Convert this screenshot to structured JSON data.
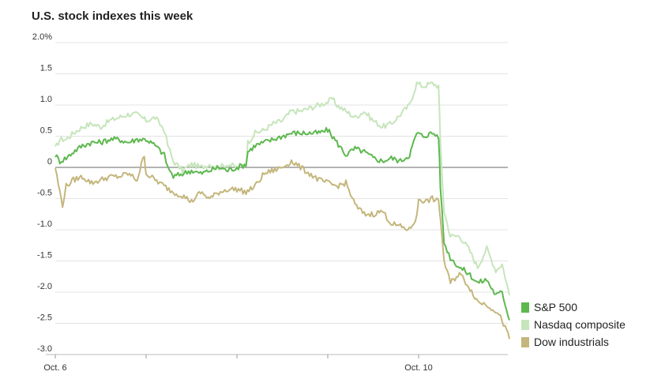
{
  "chart_data": {
    "type": "line",
    "title": "U.S. stock indexes this week",
    "xlabel": "",
    "ylabel": "",
    "ylim": [
      -3.0,
      2.0
    ],
    "y_ticks": [
      2.0,
      1.5,
      1.0,
      0.5,
      0,
      -0.5,
      -1.0,
      -1.5,
      -2.0,
      -2.5,
      -3.0
    ],
    "y_tick_labels": [
      "2.0%",
      "1.5",
      "1.0",
      "0.5",
      "0",
      "-0.5",
      "-1.0",
      "-1.5",
      "-2.0",
      "-2.5",
      "-3.0"
    ],
    "x_range": [
      0,
      5
    ],
    "x_ticks": [
      0,
      1,
      2,
      3,
      4
    ],
    "x_tick_labels": [
      "Oct. 6",
      "",
      "",
      "",
      "Oct. 10"
    ],
    "grid": true,
    "legend_position": "bottom-right",
    "series": [
      {
        "name": "Nasdaq composite",
        "color": "#c6e5bb",
        "points": [
          [
            0.0,
            0.3
          ],
          [
            0.05,
            0.45
          ],
          [
            0.12,
            0.45
          ],
          [
            0.2,
            0.55
          ],
          [
            0.3,
            0.65
          ],
          [
            0.4,
            0.7
          ],
          [
            0.5,
            0.65
          ],
          [
            0.6,
            0.75
          ],
          [
            0.7,
            0.8
          ],
          [
            0.8,
            0.85
          ],
          [
            0.9,
            0.85
          ],
          [
            1.0,
            0.75
          ],
          [
            1.1,
            0.8
          ],
          [
            1.2,
            0.6
          ],
          [
            1.24,
            0.35
          ],
          [
            1.3,
            0.1
          ],
          [
            1.4,
            -0.05
          ],
          [
            1.5,
            0.05
          ],
          [
            1.6,
            0.0
          ],
          [
            1.7,
            0.05
          ],
          [
            1.8,
            0.0
          ],
          [
            1.9,
            0.05
          ],
          [
            2.0,
            0.0
          ],
          [
            2.1,
            0.05
          ],
          [
            2.12,
            0.4
          ],
          [
            2.2,
            0.55
          ],
          [
            2.3,
            0.6
          ],
          [
            2.4,
            0.7
          ],
          [
            2.5,
            0.75
          ],
          [
            2.6,
            0.9
          ],
          [
            2.7,
            0.9
          ],
          [
            2.8,
            0.95
          ],
          [
            2.9,
            1.0
          ],
          [
            3.0,
            1.05
          ],
          [
            3.05,
            1.1
          ],
          [
            3.1,
            1.0
          ],
          [
            3.2,
            0.9
          ],
          [
            3.3,
            0.8
          ],
          [
            3.4,
            0.9
          ],
          [
            3.5,
            0.75
          ],
          [
            3.6,
            0.65
          ],
          [
            3.7,
            0.7
          ],
          [
            3.8,
            0.85
          ],
          [
            3.9,
            1.0
          ],
          [
            3.98,
            1.35
          ],
          [
            4.05,
            1.3
          ],
          [
            4.15,
            1.35
          ],
          [
            4.22,
            1.3
          ],
          [
            4.24,
            0.4
          ],
          [
            4.28,
            -0.7
          ],
          [
            4.35,
            -1.1
          ],
          [
            4.45,
            -1.1
          ],
          [
            4.55,
            -1.3
          ],
          [
            4.65,
            -1.6
          ],
          [
            4.75,
            -1.3
          ],
          [
            4.85,
            -1.65
          ],
          [
            4.92,
            -1.55
          ],
          [
            5.0,
            -2.05
          ]
        ]
      },
      {
        "name": "S&P 500",
        "color": "#5db84e",
        "points": [
          [
            0.0,
            0.2
          ],
          [
            0.05,
            0.1
          ],
          [
            0.12,
            0.15
          ],
          [
            0.2,
            0.25
          ],
          [
            0.3,
            0.35
          ],
          [
            0.4,
            0.4
          ],
          [
            0.5,
            0.4
          ],
          [
            0.6,
            0.45
          ],
          [
            0.7,
            0.45
          ],
          [
            0.8,
            0.4
          ],
          [
            0.9,
            0.45
          ],
          [
            1.0,
            0.45
          ],
          [
            1.1,
            0.35
          ],
          [
            1.2,
            0.2
          ],
          [
            1.24,
            0.0
          ],
          [
            1.3,
            -0.15
          ],
          [
            1.4,
            -0.1
          ],
          [
            1.5,
            -0.05
          ],
          [
            1.6,
            -0.1
          ],
          [
            1.7,
            -0.05
          ],
          [
            1.8,
            0.0
          ],
          [
            1.9,
            -0.05
          ],
          [
            2.0,
            0.0
          ],
          [
            2.1,
            0.05
          ],
          [
            2.12,
            0.25
          ],
          [
            2.2,
            0.35
          ],
          [
            2.3,
            0.4
          ],
          [
            2.4,
            0.45
          ],
          [
            2.5,
            0.5
          ],
          [
            2.6,
            0.55
          ],
          [
            2.7,
            0.55
          ],
          [
            2.8,
            0.55
          ],
          [
            2.9,
            0.55
          ],
          [
            3.0,
            0.6
          ],
          [
            3.05,
            0.5
          ],
          [
            3.1,
            0.4
          ],
          [
            3.2,
            0.2
          ],
          [
            3.3,
            0.3
          ],
          [
            3.4,
            0.25
          ],
          [
            3.5,
            0.15
          ],
          [
            3.6,
            0.1
          ],
          [
            3.7,
            0.15
          ],
          [
            3.8,
            0.1
          ],
          [
            3.9,
            0.2
          ],
          [
            3.98,
            0.55
          ],
          [
            4.05,
            0.5
          ],
          [
            4.15,
            0.55
          ],
          [
            4.22,
            0.5
          ],
          [
            4.24,
            -0.3
          ],
          [
            4.28,
            -1.2
          ],
          [
            4.35,
            -1.45
          ],
          [
            4.45,
            -1.6
          ],
          [
            4.55,
            -1.7
          ],
          [
            4.65,
            -1.85
          ],
          [
            4.75,
            -1.8
          ],
          [
            4.85,
            -2.05
          ],
          [
            4.92,
            -2.0
          ],
          [
            5.0,
            -2.45
          ]
        ]
      },
      {
        "name": "Dow industrials",
        "color": "#c4b67c",
        "points": [
          [
            0.0,
            0.0
          ],
          [
            0.05,
            -0.4
          ],
          [
            0.08,
            -0.6
          ],
          [
            0.12,
            -0.3
          ],
          [
            0.2,
            -0.2
          ],
          [
            0.3,
            -0.15
          ],
          [
            0.4,
            -0.25
          ],
          [
            0.5,
            -0.2
          ],
          [
            0.6,
            -0.15
          ],
          [
            0.7,
            -0.15
          ],
          [
            0.8,
            -0.1
          ],
          [
            0.9,
            -0.2
          ],
          [
            0.98,
            0.2
          ],
          [
            1.0,
            -0.1
          ],
          [
            1.1,
            -0.2
          ],
          [
            1.2,
            -0.3
          ],
          [
            1.3,
            -0.4
          ],
          [
            1.4,
            -0.45
          ],
          [
            1.5,
            -0.55
          ],
          [
            1.6,
            -0.4
          ],
          [
            1.7,
            -0.5
          ],
          [
            1.8,
            -0.4
          ],
          [
            1.9,
            -0.35
          ],
          [
            2.0,
            -0.35
          ],
          [
            2.1,
            -0.4
          ],
          [
            2.2,
            -0.3
          ],
          [
            2.3,
            -0.1
          ],
          [
            2.4,
            -0.05
          ],
          [
            2.5,
            0.0
          ],
          [
            2.6,
            0.1
          ],
          [
            2.7,
            0.0
          ],
          [
            2.8,
            -0.1
          ],
          [
            2.9,
            -0.2
          ],
          [
            3.0,
            -0.25
          ],
          [
            3.1,
            -0.3
          ],
          [
            3.2,
            -0.25
          ],
          [
            3.3,
            -0.6
          ],
          [
            3.4,
            -0.75
          ],
          [
            3.5,
            -0.75
          ],
          [
            3.6,
            -0.7
          ],
          [
            3.7,
            -0.9
          ],
          [
            3.8,
            -0.95
          ],
          [
            3.9,
            -1.0
          ],
          [
            3.98,
            -0.8
          ],
          [
            4.0,
            -0.5
          ],
          [
            4.08,
            -0.55
          ],
          [
            4.15,
            -0.5
          ],
          [
            4.22,
            -0.55
          ],
          [
            4.24,
            -0.8
          ],
          [
            4.28,
            -1.5
          ],
          [
            4.35,
            -1.85
          ],
          [
            4.45,
            -1.7
          ],
          [
            4.55,
            -1.9
          ],
          [
            4.65,
            -2.15
          ],
          [
            4.75,
            -2.2
          ],
          [
            4.85,
            -2.3
          ],
          [
            4.92,
            -2.45
          ],
          [
            5.0,
            -2.75
          ]
        ]
      }
    ],
    "legend_order": [
      "S&P 500",
      "Nasdaq composite",
      "Dow industrials"
    ]
  }
}
